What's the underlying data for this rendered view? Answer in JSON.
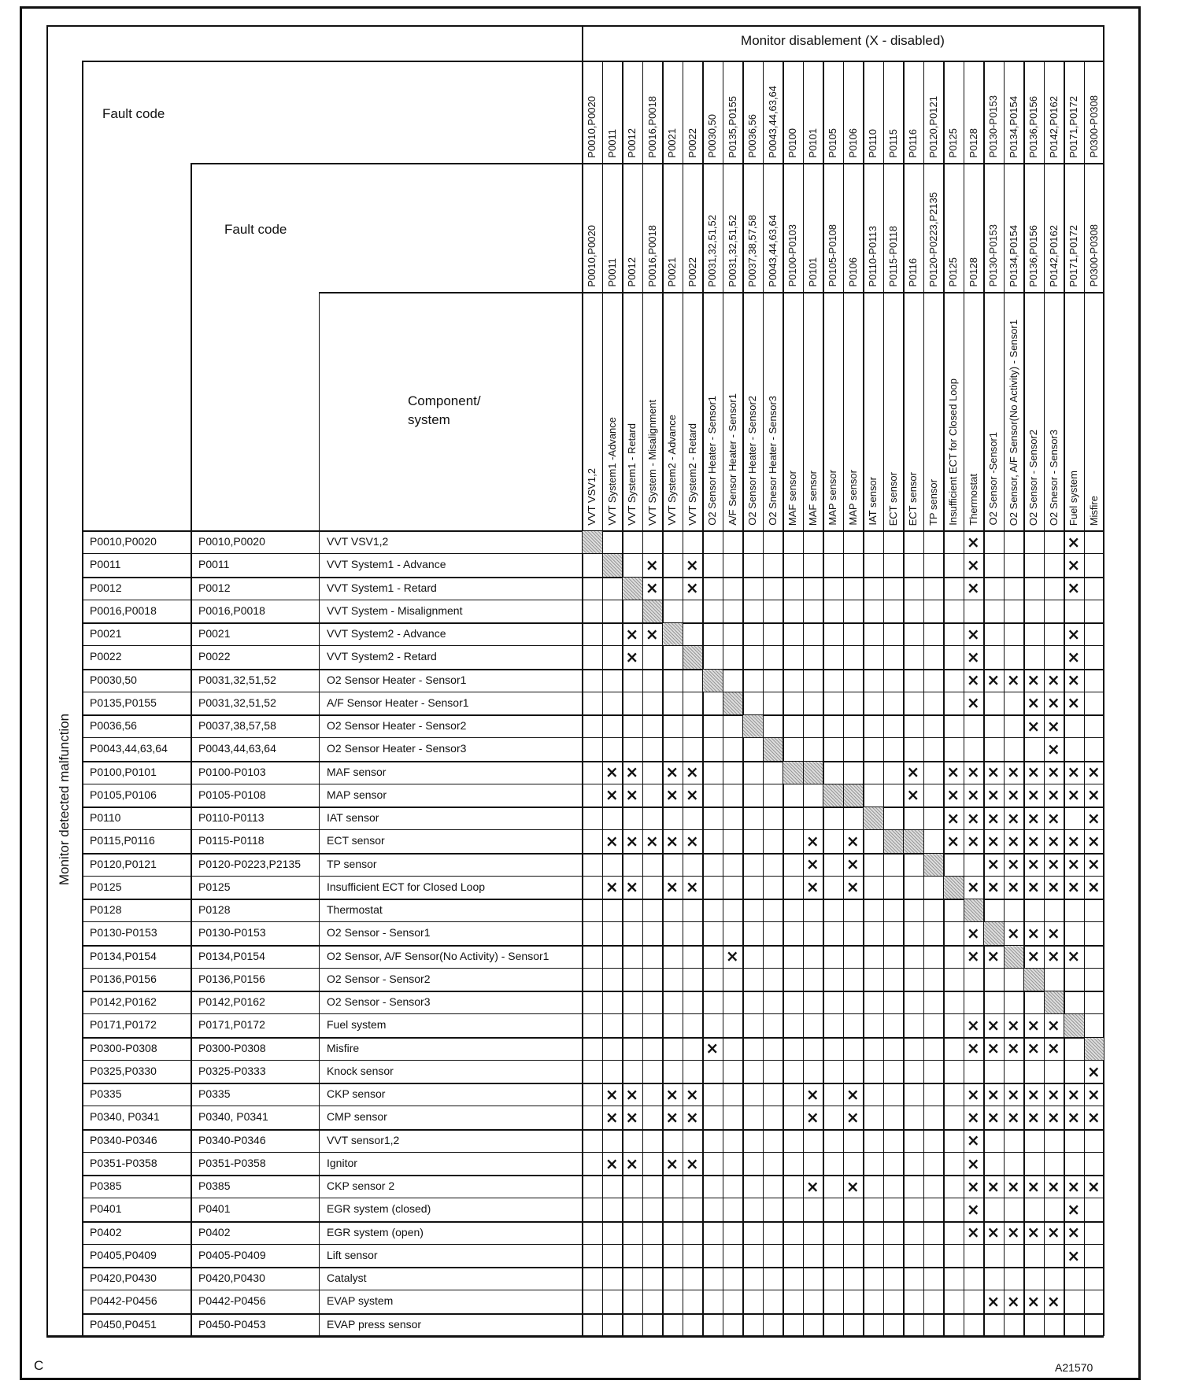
{
  "header": {
    "monitor_title": "Monitor disablement (X - disabled)",
    "fault_code_1": "Fault code",
    "fault_code_2": "Fault code",
    "component_line1": "Component/",
    "component_line2": "system",
    "side_label": "Monitor detected malfunction"
  },
  "mark": "×",
  "columns": {
    "codes1": [
      "P0010,P0020",
      "P0011",
      "P0012",
      "P0016,P0018",
      "P0021",
      "P0022",
      "P0030,50",
      "P0135,P0155",
      "P0036,56",
      "P0043,44,63,64",
      "P0100",
      "P0101",
      "P0105",
      "P0106",
      "P0110",
      "P0115",
      "P0116",
      "P0120,P0121",
      "P0125",
      "P0128",
      "P0130-P0153",
      "P0134,P0154",
      "P0136,P0156",
      "P0142,P0162",
      "P0171,P0172",
      "P0300-P0308"
    ],
    "codes2": [
      "P0010,P0020",
      "P0011",
      "P0012",
      "P0016,P0018",
      "P0021",
      "P0022",
      "P0031,32,51,52",
      "P0031,32,51,52",
      "P0037,38,57,58",
      "P0043,44,63,64",
      "P0100-P0103",
      "P0101",
      "P0105-P0108",
      "P0106",
      "P0110-P0113",
      "P0115-P0118",
      "P0116",
      "P0120-P0223,P2135",
      "P0125",
      "P0128",
      "P0130-P0153",
      "P0134,P0154",
      "P0136,P0156",
      "P0142,P0162",
      "P0171,P0172",
      "P0300-P0308"
    ],
    "components": [
      "VVT VSV1,2",
      "VVT System1 -Advance",
      "VVT System1 - Retard",
      "VVT System - Misalignment",
      "VVT System2 - Advance",
      "VVT System2 - Retard",
      "O2 Sensor  Heater - Sensor1",
      "A/F Sensor Heater - Sensor1",
      "O2 Sensor Heater - Sensor2",
      "O2 Snesor Heater  - Sensor3",
      "MAF sensor",
      "MAF sensor",
      "MAP sensor",
      "MAP sensor",
      "IAT sensor",
      "ECT sensor",
      "ECT sensor",
      "TP sensor",
      "Insufficient ECT for Closed Loop",
      "Thermostat",
      "O2 Sensor -Sensor1",
      "O2 Sensor, A/F Sensor(No Activity) - Sensor1",
      "O2 Sensor - Sensor2",
      "O2 Snesor - Sensor3",
      "Fuel system",
      "Misfire"
    ]
  },
  "rows": [
    {
      "code1": "P0010,P0020",
      "code2": "P0010,P0020",
      "component": "VVT VSV1,2",
      "self": [
        0
      ],
      "disabled": [
        19,
        24
      ]
    },
    {
      "code1": "P0011",
      "code2": "P0011",
      "component": "VVT System1 - Advance",
      "self": [
        1
      ],
      "disabled": [
        3,
        5,
        19,
        24
      ]
    },
    {
      "code1": "P0012",
      "code2": "P0012",
      "component": "VVT System1 - Retard",
      "self": [
        2
      ],
      "disabled": [
        3,
        5,
        19,
        24
      ]
    },
    {
      "code1": "P0016,P0018",
      "code2": "P0016,P0018",
      "component": "VVT System - Misalignment",
      "self": [
        3
      ],
      "disabled": []
    },
    {
      "code1": "P0021",
      "code2": "P0021",
      "component": "VVT System2 - Advance",
      "self": [
        4
      ],
      "disabled": [
        2,
        3,
        19,
        24
      ]
    },
    {
      "code1": "P0022",
      "code2": "P0022",
      "component": "VVT System2 - Retard",
      "self": [
        5
      ],
      "disabled": [
        2,
        19,
        24
      ]
    },
    {
      "code1": "P0030,50",
      "code2": "P0031,32,51,52",
      "component": "O2 Sensor Heater - Sensor1",
      "self": [
        6
      ],
      "disabled": [
        19,
        20,
        21,
        22,
        23,
        24
      ]
    },
    {
      "code1": "P0135,P0155",
      "code2": "P0031,32,51,52",
      "component": "A/F Sensor Heater  - Sensor1",
      "self": [
        7
      ],
      "disabled": [
        19,
        22,
        23,
        24
      ]
    },
    {
      "code1": "P0036,56",
      "code2": "P0037,38,57,58",
      "component": "O2 Sensor Heater - Sensor2",
      "self": [
        8
      ],
      "disabled": [
        22,
        23
      ]
    },
    {
      "code1": "P0043,44,63,64",
      "code2": "P0043,44,63,64",
      "component": "O2 Sensor Heater - Sensor3",
      "self": [
        9
      ],
      "disabled": [
        23
      ]
    },
    {
      "code1": "P0100,P0101",
      "code2": "P0100-P0103",
      "component": "MAF sensor",
      "self": [
        10,
        11
      ],
      "disabled": [
        1,
        2,
        4,
        5,
        16,
        18,
        19,
        20,
        21,
        22,
        23,
        24,
        25
      ]
    },
    {
      "code1": "P0105,P0106",
      "code2": "P0105-P0108",
      "component": "MAP sensor",
      "self": [
        12,
        13
      ],
      "disabled": [
        1,
        2,
        4,
        5,
        16,
        18,
        19,
        20,
        21,
        22,
        23,
        24,
        25
      ]
    },
    {
      "code1": "P0110",
      "code2": "P0110-P0113",
      "component": "IAT sensor",
      "self": [
        14
      ],
      "disabled": [
        18,
        19,
        20,
        21,
        22,
        23,
        25
      ]
    },
    {
      "code1": "P0115,P0116",
      "code2": "P0115-P0118",
      "component": "ECT sensor",
      "self": [
        15,
        16
      ],
      "disabled": [
        1,
        2,
        3,
        4,
        5,
        11,
        13,
        18,
        19,
        20,
        21,
        22,
        23,
        24,
        25
      ]
    },
    {
      "code1": "P0120,P0121",
      "code2": "P0120-P0223,P2135",
      "component": "TP sensor",
      "self": [
        17
      ],
      "disabled": [
        11,
        13,
        20,
        21,
        22,
        23,
        24,
        25
      ]
    },
    {
      "code1": "P0125",
      "code2": "P0125",
      "component": "Insufficient ECT for Closed Loop",
      "self": [
        18
      ],
      "disabled": [
        1,
        2,
        4,
        5,
        11,
        13,
        19,
        20,
        21,
        22,
        23,
        24,
        25
      ]
    },
    {
      "code1": "P0128",
      "code2": "P0128",
      "component": "Thermostat",
      "self": [
        19
      ],
      "disabled": []
    },
    {
      "code1": "P0130-P0153",
      "code2": "P0130-P0153",
      "component": "O2 Sensor - Sensor1",
      "self": [
        20
      ],
      "disabled": [
        19,
        21,
        22,
        23
      ]
    },
    {
      "code1": "P0134,P0154",
      "code2": "P0134,P0154",
      "component": "O2 Sensor, A/F Sensor(No Activity) - Sensor1",
      "self": [
        21
      ],
      "disabled": [
        7,
        19,
        20,
        22,
        23,
        24
      ]
    },
    {
      "code1": "P0136,P0156",
      "code2": "P0136,P0156",
      "component": "O2 Sensor - Sensor2",
      "self": [
        22
      ],
      "disabled": []
    },
    {
      "code1": "P0142,P0162",
      "code2": "P0142,P0162",
      "component": "O2 Sensor - Sensor3",
      "self": [
        23
      ],
      "disabled": []
    },
    {
      "code1": "P0171,P0172",
      "code2": "P0171,P0172",
      "component": "Fuel system",
      "self": [
        24
      ],
      "disabled": [
        19,
        20,
        21,
        22,
        23
      ]
    },
    {
      "code1": "P0300-P0308",
      "code2": "P0300-P0308",
      "component": "Misfire",
      "self": [
        25
      ],
      "disabled": [
        6,
        19,
        20,
        21,
        22,
        23
      ]
    },
    {
      "code1": "P0325,P0330",
      "code2": "P0325-P0333",
      "component": "Knock sensor",
      "self": [],
      "disabled": [
        25
      ]
    },
    {
      "code1": "P0335",
      "code2": "P0335",
      "component": "CKP sensor",
      "self": [],
      "disabled": [
        1,
        2,
        4,
        5,
        11,
        13,
        19,
        20,
        21,
        22,
        23,
        24,
        25
      ]
    },
    {
      "code1": "P0340, P0341",
      "code2": "P0340, P0341",
      "component": "CMP sensor",
      "self": [],
      "disabled": [
        1,
        2,
        4,
        5,
        11,
        13,
        19,
        20,
        21,
        22,
        23,
        24,
        25
      ]
    },
    {
      "code1": "P0340-P0346",
      "code2": "P0340-P0346",
      "component": "VVT sensor1,2",
      "self": [],
      "disabled": [
        19
      ]
    },
    {
      "code1": "P0351-P0358",
      "code2": "P0351-P0358",
      "component": "Ignitor",
      "self": [],
      "disabled": [
        1,
        2,
        4,
        5,
        19
      ]
    },
    {
      "code1": "P0385",
      "code2": "P0385",
      "component": "CKP sensor 2",
      "self": [],
      "disabled": [
        11,
        13,
        19,
        20,
        21,
        22,
        23,
        24,
        25
      ]
    },
    {
      "code1": "P0401",
      "code2": "P0401",
      "component": "EGR system (closed)",
      "self": [],
      "disabled": [
        19,
        24
      ]
    },
    {
      "code1": "P0402",
      "code2": "P0402",
      "component": "EGR system (open)",
      "self": [],
      "disabled": [
        19,
        20,
        21,
        22,
        23,
        24
      ]
    },
    {
      "code1": "P0405,P0409",
      "code2": "P0405-P0409",
      "component": "Lift sensor",
      "self": [],
      "disabled": [
        24
      ]
    },
    {
      "code1": "P0420,P0430",
      "code2": "P0420,P0430",
      "component": "Catalyst",
      "self": [],
      "disabled": []
    },
    {
      "code1": "P0442-P0456",
      "code2": "P0442-P0456",
      "component": "EVAP system",
      "self": [],
      "disabled": [
        20,
        21,
        22,
        23
      ]
    },
    {
      "code1": "P0450,P0451",
      "code2": "P0450-P0453",
      "component": "EVAP press sensor",
      "self": [],
      "disabled": []
    }
  ],
  "footer": {
    "left_label": "C",
    "figure_id": "A21570"
  }
}
